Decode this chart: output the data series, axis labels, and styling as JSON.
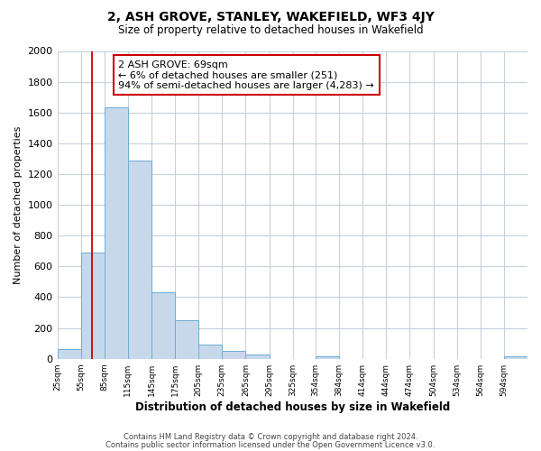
{
  "title": "2, ASH GROVE, STANLEY, WAKEFIELD, WF3 4JY",
  "subtitle": "Size of property relative to detached houses in Wakefield",
  "xlabel": "Distribution of detached houses by size in Wakefield",
  "ylabel": "Number of detached properties",
  "bar_color": "#c8d8eb",
  "bar_edge_color": "#6baed6",
  "grid_color": "#c8d0dc",
  "red_line_x": 69,
  "annotation_title": "2 ASH GROVE: 69sqm",
  "annotation_line1": "← 6% of detached houses are smaller (251)",
  "annotation_line2": "94% of semi-detached houses are larger (4,283) →",
  "footer_line1": "Contains HM Land Registry data © Crown copyright and database right 2024.",
  "footer_line2": "Contains public sector information licensed under the Open Government Licence v3.0.",
  "bins": [
    25,
    55,
    85,
    115,
    145,
    175,
    205,
    235,
    265,
    295,
    325,
    354,
    384,
    414,
    444,
    474,
    504,
    534,
    564,
    594,
    624
  ],
  "counts": [
    65,
    690,
    1635,
    1285,
    430,
    250,
    90,
    50,
    30,
    0,
    0,
    15,
    0,
    0,
    0,
    0,
    0,
    0,
    0,
    15
  ],
  "ylim": [
    0,
    2000
  ],
  "yticks": [
    0,
    200,
    400,
    600,
    800,
    1000,
    1200,
    1400,
    1600,
    1800,
    2000
  ],
  "background_color": "#ffffff"
}
